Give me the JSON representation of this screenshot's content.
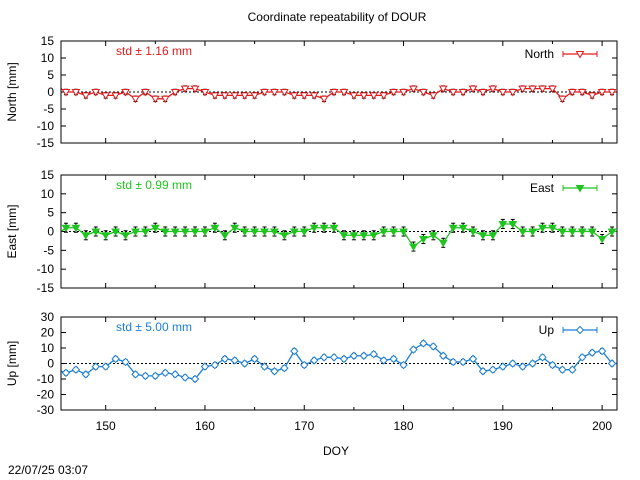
{
  "title": "Coordinate repeatability of DOUR",
  "timestamp": "22/07/25 03:07",
  "xlabel": "DOY",
  "colors": {
    "north": "#e41a1c",
    "east": "#1fc41f",
    "up": "#1a7fd6",
    "error_bars": "#000000",
    "zero_line": "#000000"
  },
  "chart_data": [
    {
      "type": "line",
      "panel": "north",
      "ylabel": "North [mm]",
      "ylim": [
        -15,
        15
      ],
      "yticks": [
        "15",
        "10",
        "5",
        "0",
        "-5",
        "-10",
        "-15"
      ],
      "xlim": [
        145.5,
        201.5
      ],
      "xticks": [
        "150",
        "160",
        "170",
        "180",
        "190",
        "200"
      ],
      "std_label": "std ± 1.16 mm",
      "legend": "North",
      "legend_position": "top-right",
      "marker": "triangle-down-open",
      "zero_line": true,
      "error": 0.8,
      "series": [
        {
          "x": [
            145.5,
            146,
            147,
            148,
            149,
            150,
            151,
            152,
            153,
            154,
            155,
            156,
            157,
            158,
            159,
            160,
            161,
            162,
            163,
            164,
            165,
            166,
            167,
            168,
            169,
            170,
            171,
            172,
            173,
            174,
            175,
            176,
            177,
            178,
            179,
            180,
            181,
            182,
            183,
            184,
            185,
            186,
            187,
            188,
            189,
            190,
            191,
            192,
            193,
            194,
            195,
            196,
            197,
            198,
            199,
            200,
            201,
            201.5
          ],
          "y": [
            1,
            0,
            0,
            -1,
            0,
            -1,
            -1,
            0,
            -2,
            0,
            -2,
            -2,
            0,
            1,
            1,
            0,
            -1,
            -1,
            -1,
            -1,
            -1,
            0,
            0,
            0,
            -1,
            -1,
            -1,
            -2,
            0,
            0,
            -1,
            -1,
            -1,
            -1,
            0,
            0,
            1,
            0,
            -1,
            1,
            0,
            0,
            1,
            0,
            1,
            0,
            0,
            1,
            1,
            1,
            1,
            -2,
            0,
            0,
            -1,
            0,
            0,
            0
          ]
        }
      ]
    },
    {
      "type": "line",
      "panel": "east",
      "ylabel": "East [mm]",
      "ylim": [
        -15,
        15
      ],
      "yticks": [
        "15",
        "10",
        "5",
        "0",
        "-5",
        "-10",
        "-15"
      ],
      "xlim": [
        145.5,
        201.5
      ],
      "xticks": [
        "150",
        "160",
        "170",
        "180",
        "190",
        "200"
      ],
      "std_label": "std ± 0.99 mm",
      "legend": "East",
      "legend_position": "top-right",
      "marker": "triangle-down-filled",
      "zero_line": true,
      "error": 1.2,
      "series": [
        {
          "x": [
            145.5,
            146,
            147,
            148,
            149,
            150,
            151,
            152,
            153,
            154,
            155,
            156,
            157,
            158,
            159,
            160,
            161,
            162,
            163,
            164,
            165,
            166,
            167,
            168,
            169,
            170,
            171,
            172,
            173,
            174,
            175,
            176,
            177,
            178,
            179,
            180,
            181,
            182,
            183,
            184,
            185,
            186,
            187,
            188,
            189,
            190,
            191,
            192,
            193,
            194,
            195,
            196,
            197,
            198,
            199,
            200,
            201,
            201.5
          ],
          "y": [
            0,
            1,
            1,
            -1,
            0,
            -1,
            0,
            -1,
            0,
            0,
            1,
            0,
            0,
            0,
            0,
            0,
            1,
            -1,
            1,
            0,
            0,
            0,
            0,
            -1,
            0,
            0,
            1,
            1,
            1,
            -1,
            -1,
            -1,
            -1,
            0,
            0,
            0,
            -4,
            -2,
            -1,
            -3,
            1,
            1,
            0,
            -1,
            -1,
            2,
            2,
            0,
            0,
            1,
            1,
            0,
            0,
            0,
            0,
            -2,
            0,
            0
          ]
        }
      ]
    },
    {
      "type": "line",
      "panel": "up",
      "ylabel": "Up [mm]",
      "ylim": [
        -30,
        30
      ],
      "yticks": [
        "30",
        "20",
        "10",
        "0",
        "-10",
        "-20",
        "-30"
      ],
      "xlim": [
        145.5,
        201.5
      ],
      "xticks": [
        "150",
        "160",
        "170",
        "180",
        "190",
        "200"
      ],
      "std_label": "std ± 5.00 mm",
      "legend": "Up",
      "legend_position": "top-right",
      "marker": "diamond-open",
      "zero_line": true,
      "error": 1.5,
      "series": [
        {
          "x": [
            145.5,
            146,
            147,
            148,
            149,
            150,
            151,
            152,
            153,
            154,
            155,
            156,
            157,
            158,
            159,
            160,
            161,
            162,
            163,
            164,
            165,
            166,
            167,
            168,
            169,
            170,
            171,
            172,
            173,
            174,
            175,
            176,
            177,
            178,
            179,
            180,
            181,
            182,
            183,
            184,
            185,
            186,
            187,
            188,
            189,
            190,
            191,
            192,
            193,
            194,
            195,
            196,
            197,
            198,
            199,
            200,
            201,
            201.5
          ],
          "y": [
            -5,
            -6,
            -4,
            -7,
            -2,
            -2,
            3,
            1,
            -7,
            -8,
            -8,
            -6,
            -7,
            -9,
            -10,
            -2,
            -1,
            3,
            2,
            0,
            3,
            -2,
            -5,
            -3,
            8,
            -1,
            2,
            4,
            4,
            3,
            5,
            5,
            6,
            2,
            3,
            -1,
            9,
            13,
            11,
            5,
            1,
            1,
            3,
            -5,
            -4,
            -2,
            0,
            -2,
            0,
            4,
            -1,
            -4,
            -4,
            4,
            7,
            8,
            0,
            0
          ]
        }
      ]
    }
  ]
}
